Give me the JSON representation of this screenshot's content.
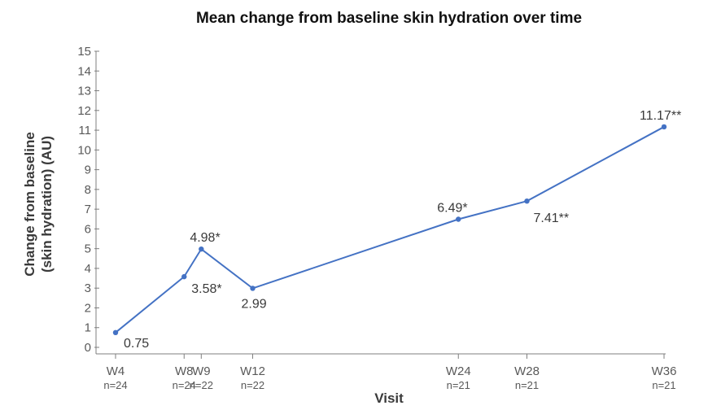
{
  "chart_data": {
    "type": "line",
    "title": "Mean change from baseline skin hydration over time",
    "xlabel": "Visit",
    "ylabel_line1": "Change from baseline",
    "ylabel_line2": "(skin hydration) (AU)",
    "ylim": [
      0,
      15
    ],
    "yticks": [
      0,
      1,
      2,
      3,
      4,
      5,
      6,
      7,
      8,
      9,
      10,
      11,
      12,
      13,
      14,
      15
    ],
    "x_weeks": [
      4,
      8,
      9,
      12,
      24,
      28,
      36
    ],
    "categories": [
      "W4",
      "W8",
      "W9",
      "W12",
      "W24",
      "W28",
      "W36"
    ],
    "n_labels": [
      "n=24",
      "n=24",
      "n=22",
      "n=22",
      "n=21",
      "n=21",
      "n=21"
    ],
    "values": [
      0.75,
      3.58,
      4.98,
      2.99,
      6.49,
      7.41,
      11.17
    ],
    "data_labels": [
      "0.75",
      "3.58*",
      "4.98*",
      "2.99",
      "6.49*",
      "7.41**",
      "11.17**"
    ],
    "line_color": "#4472c4",
    "axis_color": "#7f7f7f",
    "grid": false
  }
}
